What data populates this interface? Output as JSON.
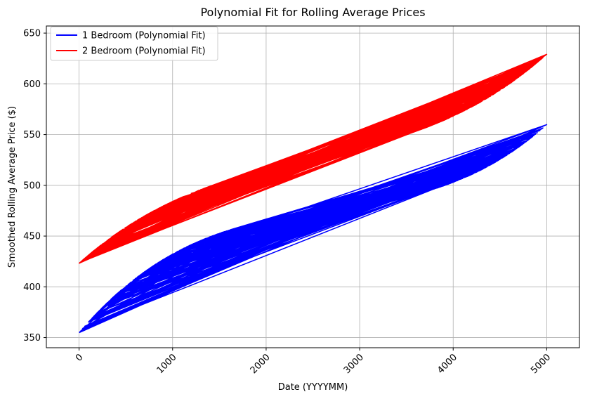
{
  "chart_data": {
    "type": "line",
    "title": "Polynomial Fit for Rolling Average Prices",
    "xlabel": "Date (YYYYMM)",
    "ylabel": "Smoothed Rolling Average Price ($)",
    "xlim": [
      -350,
      5350
    ],
    "ylim": [
      340,
      657
    ],
    "xticks": [
      0,
      1000,
      2000,
      3000,
      4000,
      5000
    ],
    "yticks": [
      350,
      400,
      450,
      500,
      550,
      600,
      650
    ],
    "grid": true,
    "legend_position": "top-left",
    "series": [
      {
        "name": "1 Bedroom (Polynomial Fit)",
        "color": "#0000ff",
        "description_poly": "cubic fit evaluated at unsorted x values",
        "coefficients": [
          354.8,
          0.10835,
          -3.526e-05,
          4.358e-09
        ],
        "sample_x": [
          0,
          5000,
          40,
          4960,
          120,
          4880,
          250,
          4750,
          400,
          4600,
          700,
          4300,
          1000,
          4000,
          1500,
          3500,
          2000,
          3000,
          2500,
          4900,
          60,
          4700,
          300,
          4500,
          900,
          3800,
          1200,
          3600,
          1800,
          3200,
          2200,
          3400,
          2800,
          4100,
          500,
          4400,
          800,
          3900,
          1400,
          3300,
          1700,
          3700,
          2100,
          4200,
          2600,
          4800,
          150,
          4650,
          350,
          4550,
          650,
          3850,
          1100,
          3550,
          1600,
          3150,
          2400,
          3950,
          2900,
          4450,
          200,
          4250,
          750,
          3750,
          1300,
          3450,
          1900,
          3050,
          2300,
          4350,
          2700,
          4850,
          100,
          4750,
          450,
          4150,
          950,
          3650,
          1550,
          3350,
          2050,
          3250,
          2450,
          4050,
          600,
          4950,
          20,
          5000
        ],
        "values_note": "y computed from coefficients"
      },
      {
        "name": "2 Bedroom (Polynomial Fit)",
        "color": "#ff0000",
        "description_poly": "cubic fit evaluated at unsorted x values",
        "coefficients": [
          423.2,
          0.08236,
          -2.471e-05,
          3.295e-09
        ],
        "sample_x": [
          0,
          5000,
          40,
          4960,
          120,
          4880,
          250,
          4750,
          400,
          4600,
          700,
          4300,
          1000,
          4000,
          1500,
          3500,
          2000,
          3000,
          2500,
          4900,
          60,
          4700,
          300,
          4500,
          900,
          3800,
          1200,
          3600,
          1800,
          3200,
          2200,
          3400,
          2800,
          4100,
          500,
          4400,
          800,
          3900,
          1400,
          3300,
          1700,
          3700,
          2100,
          4200,
          2600,
          4800,
          150,
          4650,
          350,
          4550,
          650,
          3850,
          1100,
          3550,
          1600,
          3150,
          2400,
          3950,
          2900,
          4450,
          200,
          4250,
          750,
          3750,
          1300,
          3450,
          1900,
          3050,
          2300,
          4350,
          2700,
          4850,
          100,
          4750,
          450,
          4150,
          950,
          3650,
          1550,
          3350,
          2050,
          3250,
          2450,
          4050,
          600,
          4950,
          20,
          5000
        ],
        "values_note": "y computed from coefficients"
      }
    ]
  }
}
